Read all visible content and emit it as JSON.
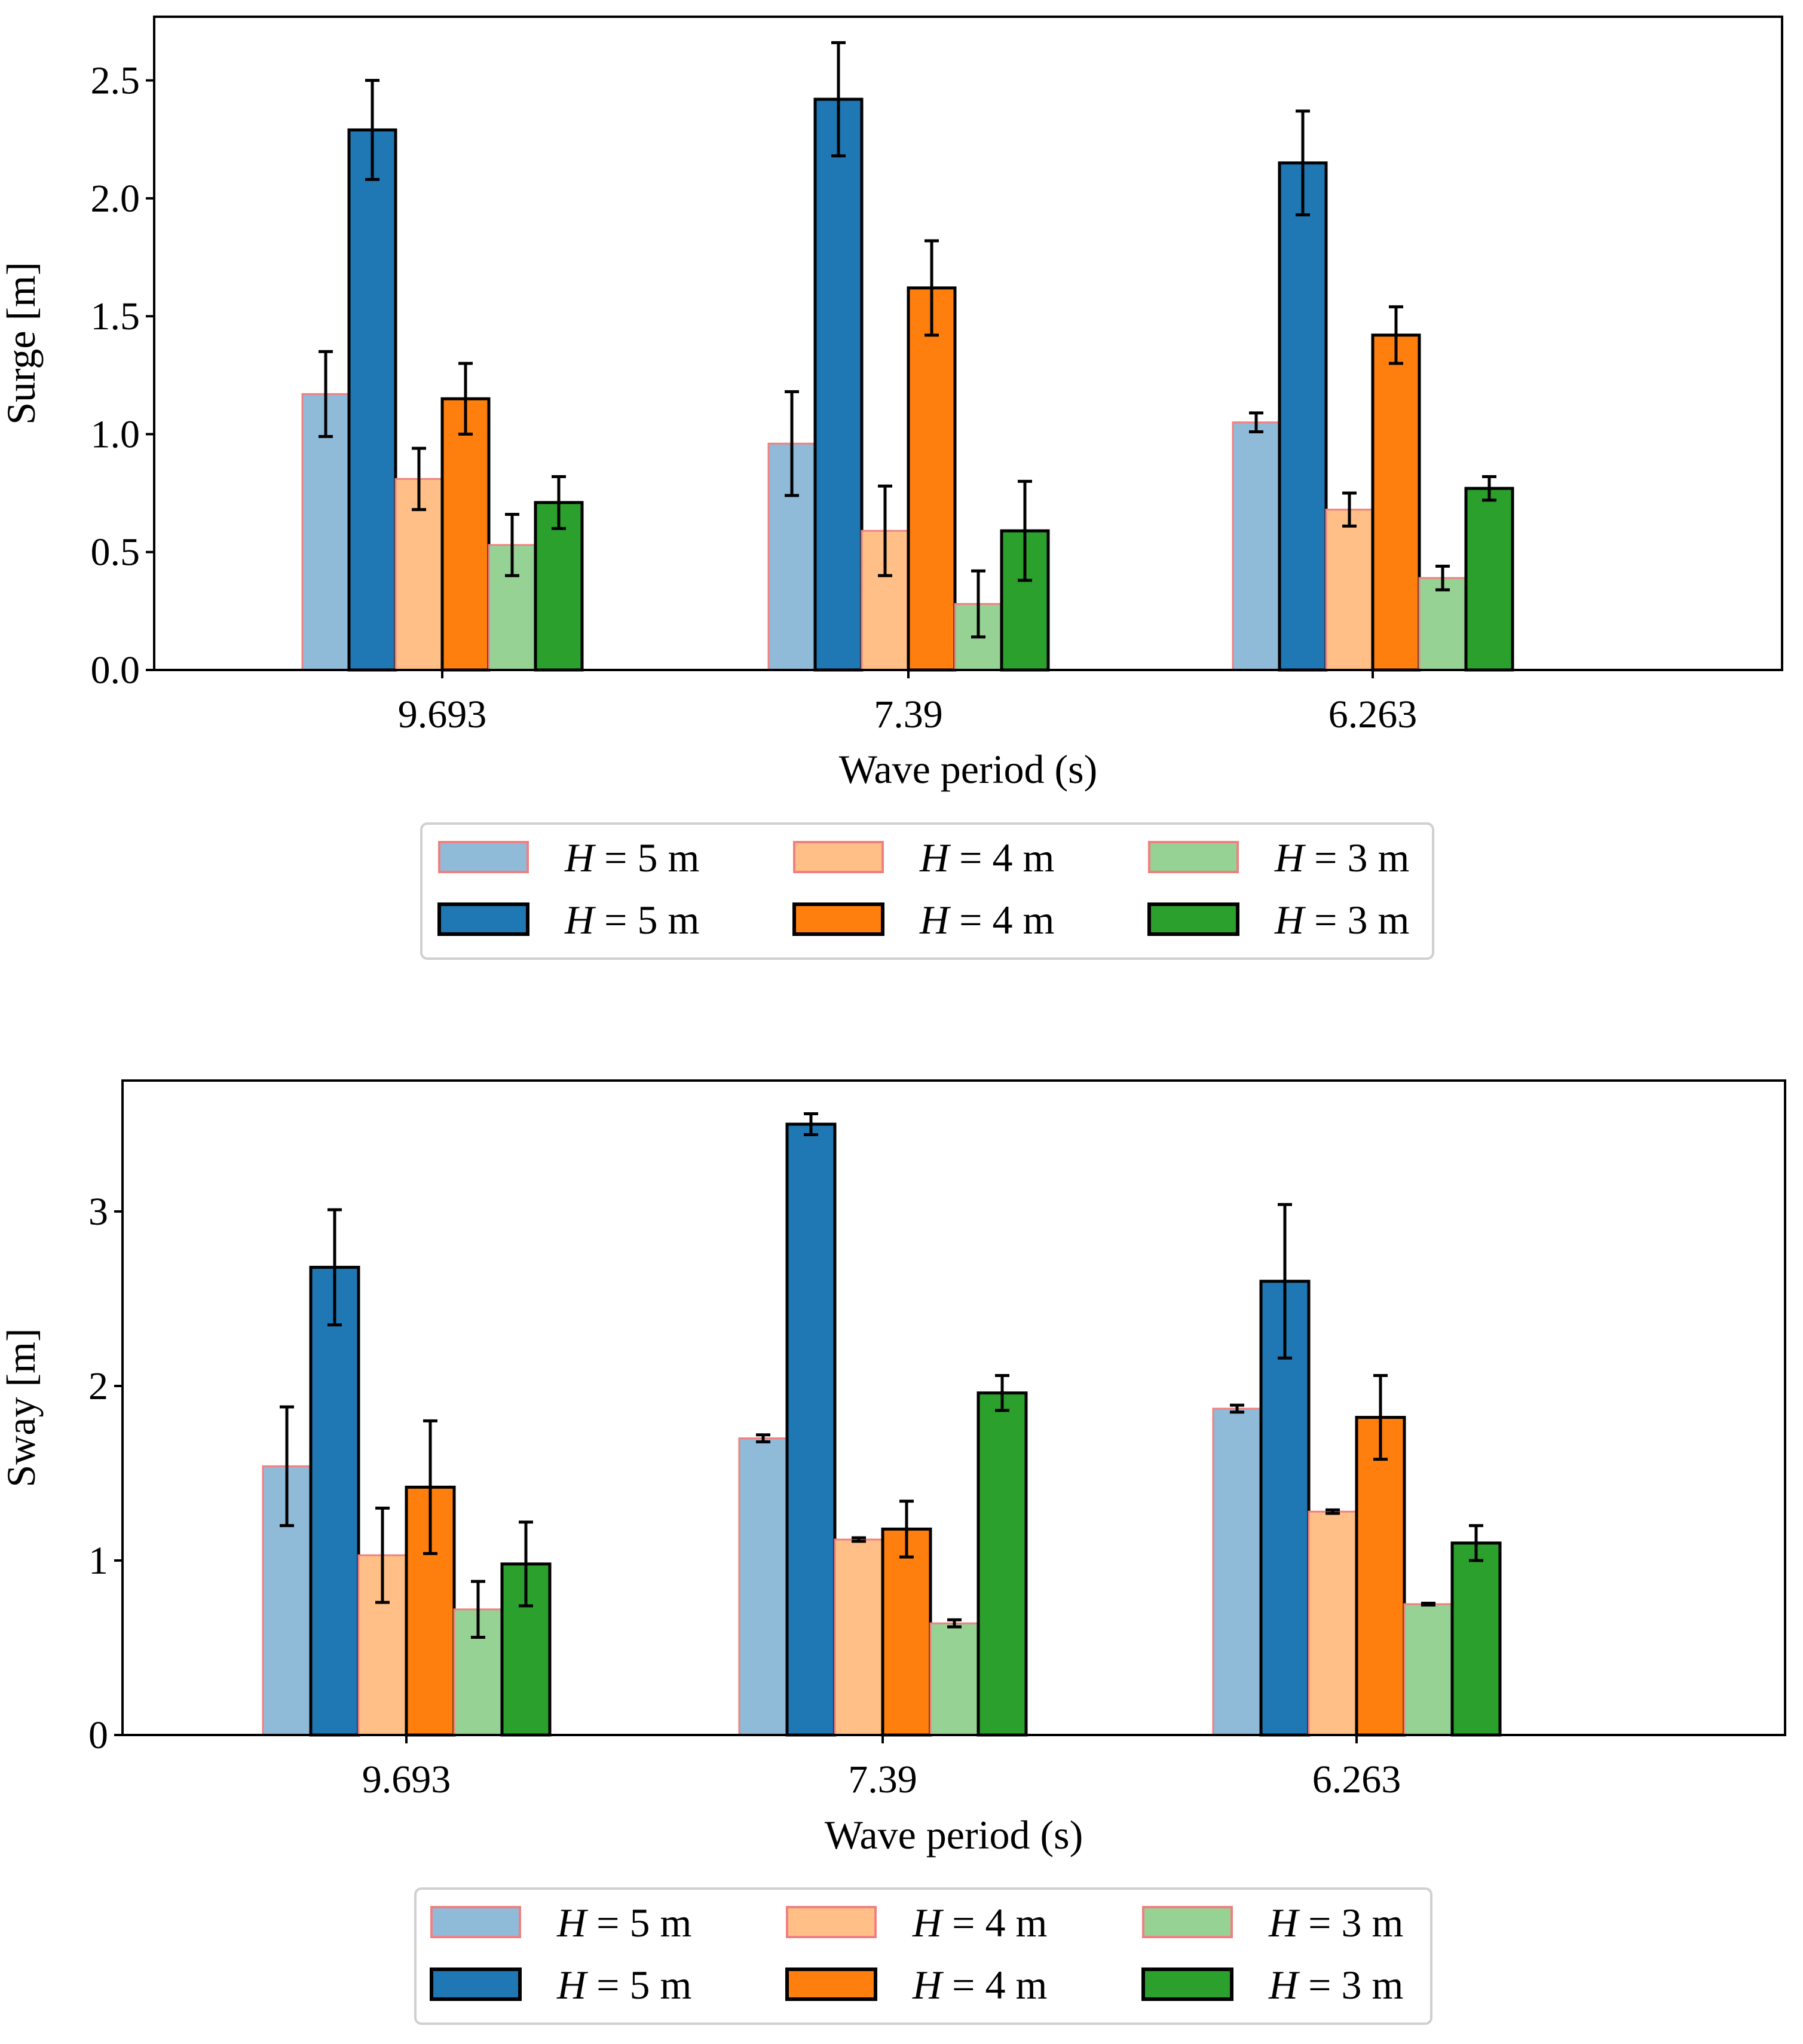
{
  "colors": {
    "light_blue": "#8fbbd9",
    "dark_blue": "#1f77b4",
    "light_orange": "#ffbf86",
    "dark_orange": "#ff7f0e",
    "light_green": "#96d294",
    "dark_green": "#2ca02c",
    "light_edge": "#f08080",
    "dark_edge": "#000000",
    "error_bar": "#000000"
  },
  "chart_data": [
    {
      "type": "bar",
      "xlabel": "Wave period (s)",
      "ylabel": "Surge [m]",
      "categories": [
        "9.693",
        "7.39",
        "6.263"
      ],
      "ylim": [
        0,
        2.77
      ],
      "yticks": [
        0.0,
        0.5,
        1.0,
        1.5,
        2.0,
        2.5
      ],
      "ytick_labels": [
        "0.0",
        "0.5",
        "1.0",
        "1.5",
        "2.0",
        "2.5"
      ],
      "series": [
        {
          "name": "H = 5 m",
          "style": "light",
          "color": "light_blue",
          "values": [
            1.17,
            0.96,
            1.05
          ],
          "errors": [
            0.18,
            0.22,
            0.04
          ]
        },
        {
          "name": "H = 5 m",
          "style": "dark",
          "color": "dark_blue",
          "values": [
            2.29,
            2.42,
            2.15
          ],
          "errors": [
            0.21,
            0.24,
            0.22
          ]
        },
        {
          "name": "H = 4 m",
          "style": "light",
          "color": "light_orange",
          "values": [
            0.81,
            0.59,
            0.68
          ],
          "errors": [
            0.13,
            0.19,
            0.07
          ]
        },
        {
          "name": "H = 4 m",
          "style": "dark",
          "color": "dark_orange",
          "values": [
            1.15,
            1.62,
            1.42
          ],
          "errors": [
            0.15,
            0.2,
            0.12
          ]
        },
        {
          "name": "H = 3 m",
          "style": "light",
          "color": "light_green",
          "values": [
            0.53,
            0.28,
            0.39
          ],
          "errors": [
            0.13,
            0.14,
            0.05
          ]
        },
        {
          "name": "H = 3 m",
          "style": "dark",
          "color": "dark_green",
          "values": [
            0.71,
            0.59,
            0.77
          ],
          "errors": [
            0.11,
            0.21,
            0.05
          ]
        }
      ],
      "legend": {
        "placement": "below",
        "entries": [
          {
            "label_var": "H",
            "label_rest": " = 5 m"
          },
          {
            "label_var": "H",
            "label_rest": " = 4 m"
          },
          {
            "label_var": "H",
            "label_rest": " = 3 m"
          },
          {
            "label_var": "H",
            "label_rest": " = 5 m"
          },
          {
            "label_var": "H",
            "label_rest": " = 4 m"
          },
          {
            "label_var": "H",
            "label_rest": " = 3 m"
          }
        ]
      }
    },
    {
      "type": "bar",
      "xlabel": "Wave period (s)",
      "ylabel": "Sway [m]",
      "categories": [
        "9.693",
        "7.39",
        "6.263"
      ],
      "ylim": [
        0,
        3.75
      ],
      "yticks": [
        0,
        1,
        2,
        3
      ],
      "ytick_labels": [
        "0",
        "1",
        "2",
        "3"
      ],
      "series": [
        {
          "name": "H = 5 m",
          "style": "light",
          "color": "light_blue",
          "values": [
            1.54,
            1.7,
            1.87
          ],
          "errors": [
            0.34,
            0.02,
            0.02
          ]
        },
        {
          "name": "H = 5 m",
          "style": "dark",
          "color": "dark_blue",
          "values": [
            2.68,
            3.5,
            2.6
          ],
          "errors": [
            0.33,
            0.06,
            0.44
          ]
        },
        {
          "name": "H = 4 m",
          "style": "light",
          "color": "light_orange",
          "values": [
            1.03,
            1.12,
            1.28
          ],
          "errors": [
            0.27,
            0.01,
            0.01
          ]
        },
        {
          "name": "H = 4 m",
          "style": "dark",
          "color": "dark_orange",
          "values": [
            1.42,
            1.18,
            1.82
          ],
          "errors": [
            0.38,
            0.16,
            0.24
          ]
        },
        {
          "name": "H = 3 m",
          "style": "light",
          "color": "light_green",
          "values": [
            0.72,
            0.64,
            0.75
          ],
          "errors": [
            0.16,
            0.02,
            0.005
          ]
        },
        {
          "name": "H = 3 m",
          "style": "dark",
          "color": "dark_green",
          "values": [
            0.98,
            1.96,
            1.1
          ],
          "errors": [
            0.24,
            0.1,
            0.1
          ]
        }
      ],
      "legend": {
        "placement": "below",
        "entries": [
          {
            "label_var": "H",
            "label_rest": " = 5 m"
          },
          {
            "label_var": "H",
            "label_rest": " = 4 m"
          },
          {
            "label_var": "H",
            "label_rest": " = 3 m"
          },
          {
            "label_var": "H",
            "label_rest": " = 5 m"
          },
          {
            "label_var": "H",
            "label_rest": " = 4 m"
          },
          {
            "label_var": "H",
            "label_rest": " = 3 m"
          }
        ]
      }
    }
  ]
}
